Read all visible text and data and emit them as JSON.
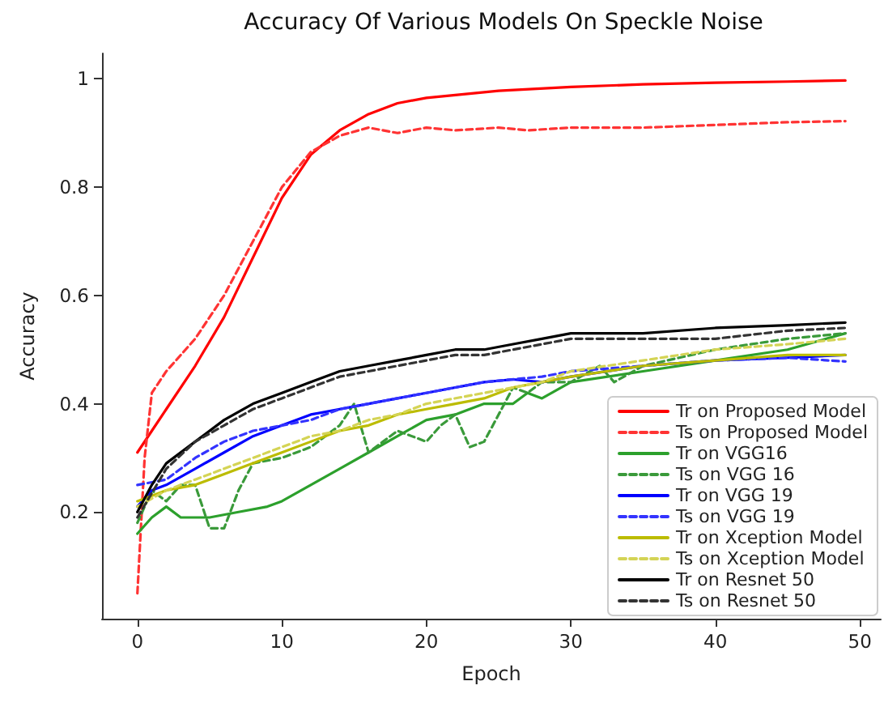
{
  "chart_data": {
    "type": "line",
    "title": "Accuracy Of Various Models On Speckle Noise",
    "xlabel": "Epoch",
    "ylabel": "Accuracy",
    "xlim": [
      -2.45,
      51.45
    ],
    "xticks": [
      0,
      10,
      20,
      30,
      40,
      50
    ],
    "ylim": [
      0.003,
      1.047
    ],
    "yticks": [
      0.2,
      0.4,
      0.6,
      0.8,
      1.0
    ],
    "grid": false,
    "legend": "bottom right",
    "marker": "none",
    "series": [
      {
        "name": "Tr on Proposed Model",
        "color": "#ff0000",
        "line_style": "solid",
        "x": [
          0,
          1,
          2,
          4,
          6,
          8,
          10,
          12,
          14,
          16,
          18,
          20,
          25,
          30,
          35,
          40,
          45,
          49
        ],
        "values": [
          0.31,
          0.35,
          0.39,
          0.47,
          0.56,
          0.67,
          0.78,
          0.86,
          0.905,
          0.935,
          0.955,
          0.965,
          0.978,
          0.985,
          0.99,
          0.993,
          0.995,
          0.997
        ]
      },
      {
        "name": "Ts on Proposed Model",
        "color": "#ff3333",
        "line_style": "dashed",
        "x": [
          0,
          0.5,
          1,
          2,
          4,
          6,
          8,
          10,
          12,
          14,
          16,
          18,
          20,
          22,
          25,
          27,
          30,
          35,
          40,
          45,
          49
        ],
        "values": [
          0.05,
          0.3,
          0.42,
          0.46,
          0.52,
          0.6,
          0.7,
          0.8,
          0.865,
          0.895,
          0.91,
          0.9,
          0.91,
          0.905,
          0.91,
          0.905,
          0.91,
          0.91,
          0.915,
          0.92,
          0.922
        ]
      },
      {
        "name": "Tr on VGG16",
        "color": "#2ca02c",
        "line_style": "solid",
        "x": [
          0,
          1,
          2,
          3,
          5,
          7,
          9,
          10,
          12,
          14,
          16,
          18,
          20,
          22,
          24,
          26,
          27,
          28,
          30,
          35,
          40,
          45,
          49
        ],
        "values": [
          0.16,
          0.19,
          0.21,
          0.19,
          0.19,
          0.2,
          0.21,
          0.22,
          0.25,
          0.28,
          0.31,
          0.34,
          0.37,
          0.38,
          0.4,
          0.4,
          0.42,
          0.41,
          0.44,
          0.46,
          0.48,
          0.5,
          0.53
        ]
      },
      {
        "name": "Ts on VGG 16",
        "color": "#3a9a3a",
        "line_style": "dashed",
        "x": [
          0,
          1,
          2,
          3,
          4,
          5,
          6,
          7,
          8,
          10,
          12,
          14,
          15,
          16,
          17,
          18,
          20,
          21,
          22,
          23,
          24,
          26,
          27,
          28,
          30,
          32,
          33,
          35,
          40,
          45,
          49
        ],
        "values": [
          0.18,
          0.24,
          0.22,
          0.25,
          0.25,
          0.17,
          0.17,
          0.24,
          0.29,
          0.3,
          0.32,
          0.36,
          0.4,
          0.31,
          0.33,
          0.35,
          0.33,
          0.36,
          0.38,
          0.32,
          0.33,
          0.43,
          0.42,
          0.44,
          0.44,
          0.47,
          0.44,
          0.47,
          0.5,
          0.52,
          0.53
        ]
      },
      {
        "name": "Tr on VGG 19",
        "color": "#0000ff",
        "line_style": "solid",
        "x": [
          0,
          1,
          2,
          4,
          6,
          8,
          10,
          12,
          14,
          16,
          18,
          20,
          22,
          24,
          26,
          28,
          30,
          35,
          40,
          45,
          49
        ],
        "values": [
          0.21,
          0.24,
          0.25,
          0.28,
          0.31,
          0.34,
          0.36,
          0.38,
          0.39,
          0.4,
          0.41,
          0.42,
          0.43,
          0.44,
          0.445,
          0.44,
          0.45,
          0.47,
          0.48,
          0.485,
          0.49
        ]
      },
      {
        "name": "Ts on VGG 19",
        "color": "#3333ff",
        "line_style": "dashed",
        "x": [
          0,
          2,
          4,
          6,
          8,
          10,
          12,
          14,
          16,
          18,
          20,
          24,
          28,
          30,
          35,
          40,
          45,
          49
        ],
        "values": [
          0.25,
          0.26,
          0.3,
          0.33,
          0.35,
          0.36,
          0.37,
          0.39,
          0.4,
          0.41,
          0.42,
          0.44,
          0.45,
          0.46,
          0.47,
          0.48,
          0.485,
          0.478
        ]
      },
      {
        "name": "Tr on Xception Model",
        "color": "#bcbc00",
        "line_style": "solid",
        "x": [
          0,
          2,
          4,
          6,
          8,
          10,
          12,
          14,
          16,
          18,
          20,
          22,
          24,
          26,
          28,
          30,
          35,
          40,
          45,
          49
        ],
        "values": [
          0.22,
          0.24,
          0.25,
          0.27,
          0.29,
          0.31,
          0.33,
          0.35,
          0.36,
          0.38,
          0.39,
          0.4,
          0.41,
          0.43,
          0.44,
          0.45,
          0.47,
          0.48,
          0.49,
          0.49
        ]
      },
      {
        "name": "Ts on Xception Model",
        "color": "#d4d455",
        "line_style": "dashed",
        "x": [
          0,
          2,
          4,
          6,
          8,
          10,
          12,
          14,
          16,
          18,
          20,
          24,
          28,
          30,
          35,
          40,
          45,
          49
        ],
        "values": [
          0.21,
          0.24,
          0.26,
          0.28,
          0.3,
          0.32,
          0.34,
          0.35,
          0.37,
          0.38,
          0.4,
          0.42,
          0.44,
          0.46,
          0.48,
          0.5,
          0.51,
          0.52
        ]
      },
      {
        "name": "Tr on Resnet 50",
        "color": "#000000",
        "line_style": "solid",
        "x": [
          0,
          1,
          2,
          4,
          6,
          8,
          10,
          12,
          14,
          16,
          18,
          20,
          22,
          24,
          26,
          28,
          30,
          35,
          40,
          45,
          49
        ],
        "values": [
          0.2,
          0.25,
          0.29,
          0.33,
          0.37,
          0.4,
          0.42,
          0.44,
          0.46,
          0.47,
          0.48,
          0.49,
          0.5,
          0.5,
          0.51,
          0.52,
          0.53,
          0.53,
          0.54,
          0.545,
          0.55
        ]
      },
      {
        "name": "Ts on Resnet 50",
        "color": "#333333",
        "line_style": "dashed",
        "x": [
          0,
          2,
          4,
          6,
          8,
          10,
          12,
          14,
          16,
          18,
          20,
          22,
          24,
          26,
          28,
          30,
          35,
          40,
          45,
          49
        ],
        "values": [
          0.19,
          0.28,
          0.33,
          0.36,
          0.39,
          0.41,
          0.43,
          0.45,
          0.46,
          0.47,
          0.48,
          0.49,
          0.49,
          0.5,
          0.51,
          0.52,
          0.52,
          0.52,
          0.535,
          0.54
        ]
      }
    ]
  }
}
